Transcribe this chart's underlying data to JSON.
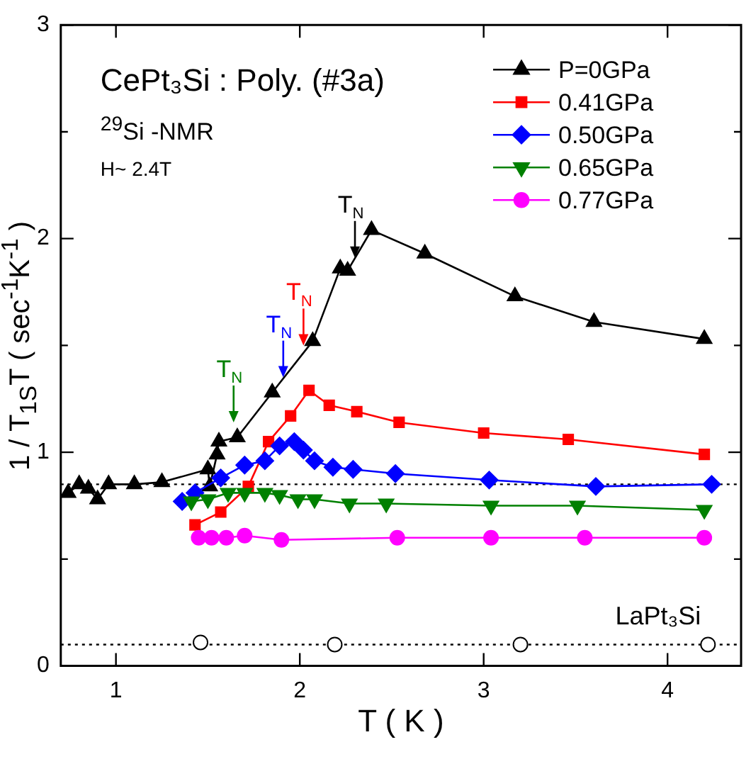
{
  "chart_data": {
    "type": "line",
    "xlabel": "T ( K )",
    "ylabel": "1 / T$_{1S}$T ( sec$^{-1}$K$^{-1}$ )",
    "xlim": [
      0.7,
      4.4
    ],
    "xticks": [
      1,
      2,
      3,
      4
    ],
    "ylim": [
      0,
      3
    ],
    "yticks": [
      0,
      {
        "value": 0.5,
        "label": null
      },
      1,
      {
        "value": 1.5,
        "label": null
      },
      2,
      {
        "value": 2.5,
        "label": null
      },
      3
    ],
    "grid": false,
    "legend": "top right",
    "line_style": "solid",
    "series": [
      {
        "name": "P=0GPa",
        "color": "#000000",
        "marker": "triangle",
        "x": [
          0.74,
          0.8,
          0.85,
          0.9,
          0.96,
          1.1,
          1.25,
          1.5,
          1.51,
          1.55,
          1.56,
          1.66,
          1.85,
          2.07,
          2.22,
          2.26,
          2.39,
          2.68,
          3.17,
          3.6,
          4.2
        ],
        "values": [
          0.81,
          0.85,
          0.83,
          0.78,
          0.85,
          0.85,
          0.86,
          0.92,
          0.84,
          0.99,
          1.05,
          1.07,
          1.28,
          1.52,
          1.86,
          1.85,
          2.04,
          1.93,
          1.73,
          1.61,
          1.53
        ]
      },
      {
        "name": "0.41GPa",
        "color": "#ff0000",
        "marker": "square",
        "x": [
          1.43,
          1.57,
          1.72,
          1.83,
          1.95,
          2.05,
          2.16,
          2.31,
          2.54,
          3.0,
          3.46,
          4.2
        ],
        "values": [
          0.66,
          0.72,
          0.84,
          1.05,
          1.17,
          1.29,
          1.22,
          1.19,
          1.14,
          1.09,
          1.06,
          0.99
        ]
      },
      {
        "name": "0.50GPa",
        "color": "#0000ff",
        "marker": "diamond",
        "x": [
          1.36,
          1.43,
          1.57,
          1.7,
          1.81,
          1.89,
          1.97,
          2.02,
          2.08,
          2.18,
          2.29,
          2.52,
          3.03,
          3.61,
          4.24
        ],
        "values": [
          0.77,
          0.81,
          0.88,
          0.94,
          0.96,
          1.03,
          1.05,
          1.01,
          0.96,
          0.93,
          0.92,
          0.9,
          0.87,
          0.84,
          0.85
        ]
      },
      {
        "name": "0.65GPa",
        "color": "#008000",
        "marker": "triangle_down",
        "x": [
          1.41,
          1.5,
          1.61,
          1.7,
          1.81,
          1.89,
          1.99,
          2.08,
          2.27,
          2.47,
          3.04,
          3.51,
          4.2
        ],
        "values": [
          0.77,
          0.78,
          0.81,
          0.81,
          0.81,
          0.8,
          0.78,
          0.78,
          0.76,
          0.76,
          0.75,
          0.75,
          0.73
        ]
      },
      {
        "name": "0.77GPa",
        "color": "#ff00ff",
        "marker": "circle",
        "x": [
          1.45,
          1.52,
          1.6,
          1.7,
          1.9,
          2.53,
          3.04,
          3.55,
          4.2
        ],
        "values": [
          0.6,
          0.6,
          0.6,
          0.61,
          0.59,
          0.6,
          0.6,
          0.6,
          0.6
        ]
      },
      {
        "name": "LaPt₃Si",
        "type": "scatter",
        "color": "#000000",
        "marker": "circle",
        "x": [
          1.46,
          2.19,
          3.2,
          4.22
        ],
        "values": [
          0.11,
          0.1,
          0.1,
          0.1
        ]
      }
    ],
    "ref_lines": [
      {
        "axis": "y",
        "value": 0.85,
        "line_style": "dotted",
        "color": "#000000"
      },
      {
        "axis": "y",
        "value": 0.1,
        "line_style": "dotted",
        "color": "#000000"
      }
    ],
    "annotations": [
      "CePt₃Si : Poly. (#3a)",
      "$^{29}$Si -NMR",
      "H~ 2.4T",
      {
        "text": "T$_{N}$",
        "x": 2.3,
        "y": 1.91
      },
      {
        "text": "T$_{N}$",
        "x": 2.02,
        "y": 1.5
      },
      {
        "text": "T$_{N}$",
        "x": 1.91,
        "y": 1.35
      },
      {
        "text": "T$_{N}$",
        "x": 1.64,
        "y": 1.14
      }
    ]
  }
}
